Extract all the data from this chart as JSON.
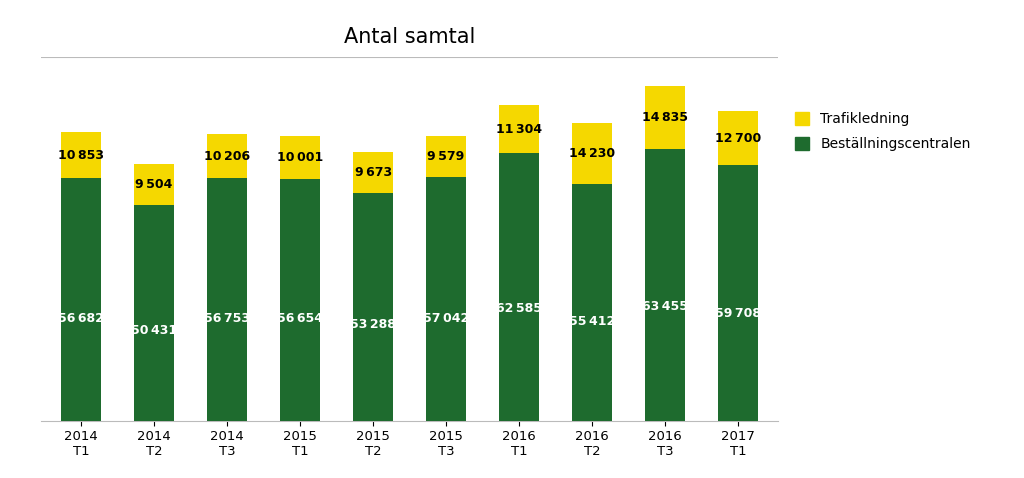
{
  "title": "Antal samtal",
  "categories": [
    "2014\nT1",
    "2014\nT2",
    "2014\nT3",
    "2015\nT1",
    "2015\nT2",
    "2015\nT3",
    "2016\nT1",
    "2016\nT2",
    "2016\nT3",
    "2017\nT1"
  ],
  "bestallning": [
    56682,
    50431,
    56753,
    56654,
    53288,
    57042,
    62585,
    55412,
    63455,
    59708
  ],
  "trafik": [
    10853,
    9504,
    10206,
    10001,
    9673,
    9579,
    11304,
    14230,
    14835,
    12700
  ],
  "color_bestallning": "#1e6b2e",
  "color_trafik": "#f5d800",
  "legend_trafik": "Trafikledning",
  "legend_bestallning": "Beställningscentralen",
  "bar_width": 0.55,
  "ylim": [
    0,
    85000
  ],
  "background_color": "#ffffff",
  "title_fontsize": 15,
  "label_fontsize": 9,
  "tick_fontsize": 9.5
}
